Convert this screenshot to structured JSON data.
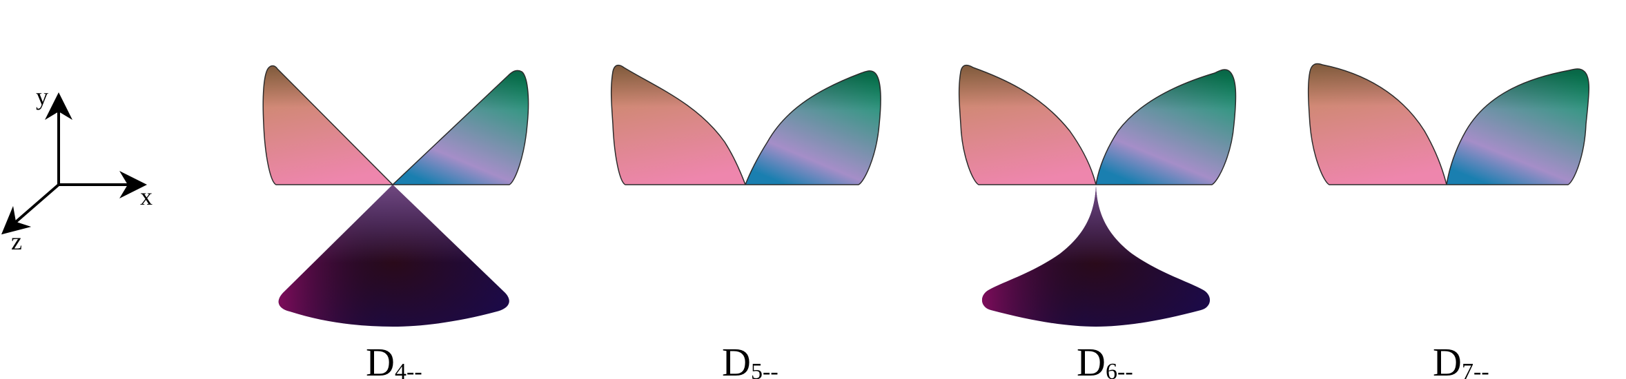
{
  "axes": {
    "y_label": "y",
    "x_label": "x",
    "z_label": "z"
  },
  "panels": [
    {
      "label_main": "D",
      "label_sub": "4--",
      "lobes": [
        "upper-left",
        "upper-right",
        "lower"
      ]
    },
    {
      "label_main": "D",
      "label_sub": "5--",
      "lobes": [
        "upper-left",
        "upper-right"
      ]
    },
    {
      "label_main": "D",
      "label_sub": "6--",
      "lobes": [
        "upper-left",
        "upper-right",
        "lower"
      ]
    },
    {
      "label_main": "D",
      "label_sub": "7--",
      "lobes": [
        "upper-left",
        "upper-right"
      ]
    }
  ],
  "colors": {
    "lobe_left_top": "#c48a5e",
    "lobe_left_bottom": "#ee86ad",
    "lobe_right_top": "#0d9a6a",
    "lobe_right_bottom": "#a58ec8",
    "lobe_right_edge": "#1a7fb0",
    "lobe_lower_top": "#7a4f86",
    "lobe_lower_left": "#8f0d5e",
    "lobe_lower_center": "#2a0a1a",
    "lobe_lower_right": "#1b0a4a",
    "outline": "#2b2b2b"
  }
}
